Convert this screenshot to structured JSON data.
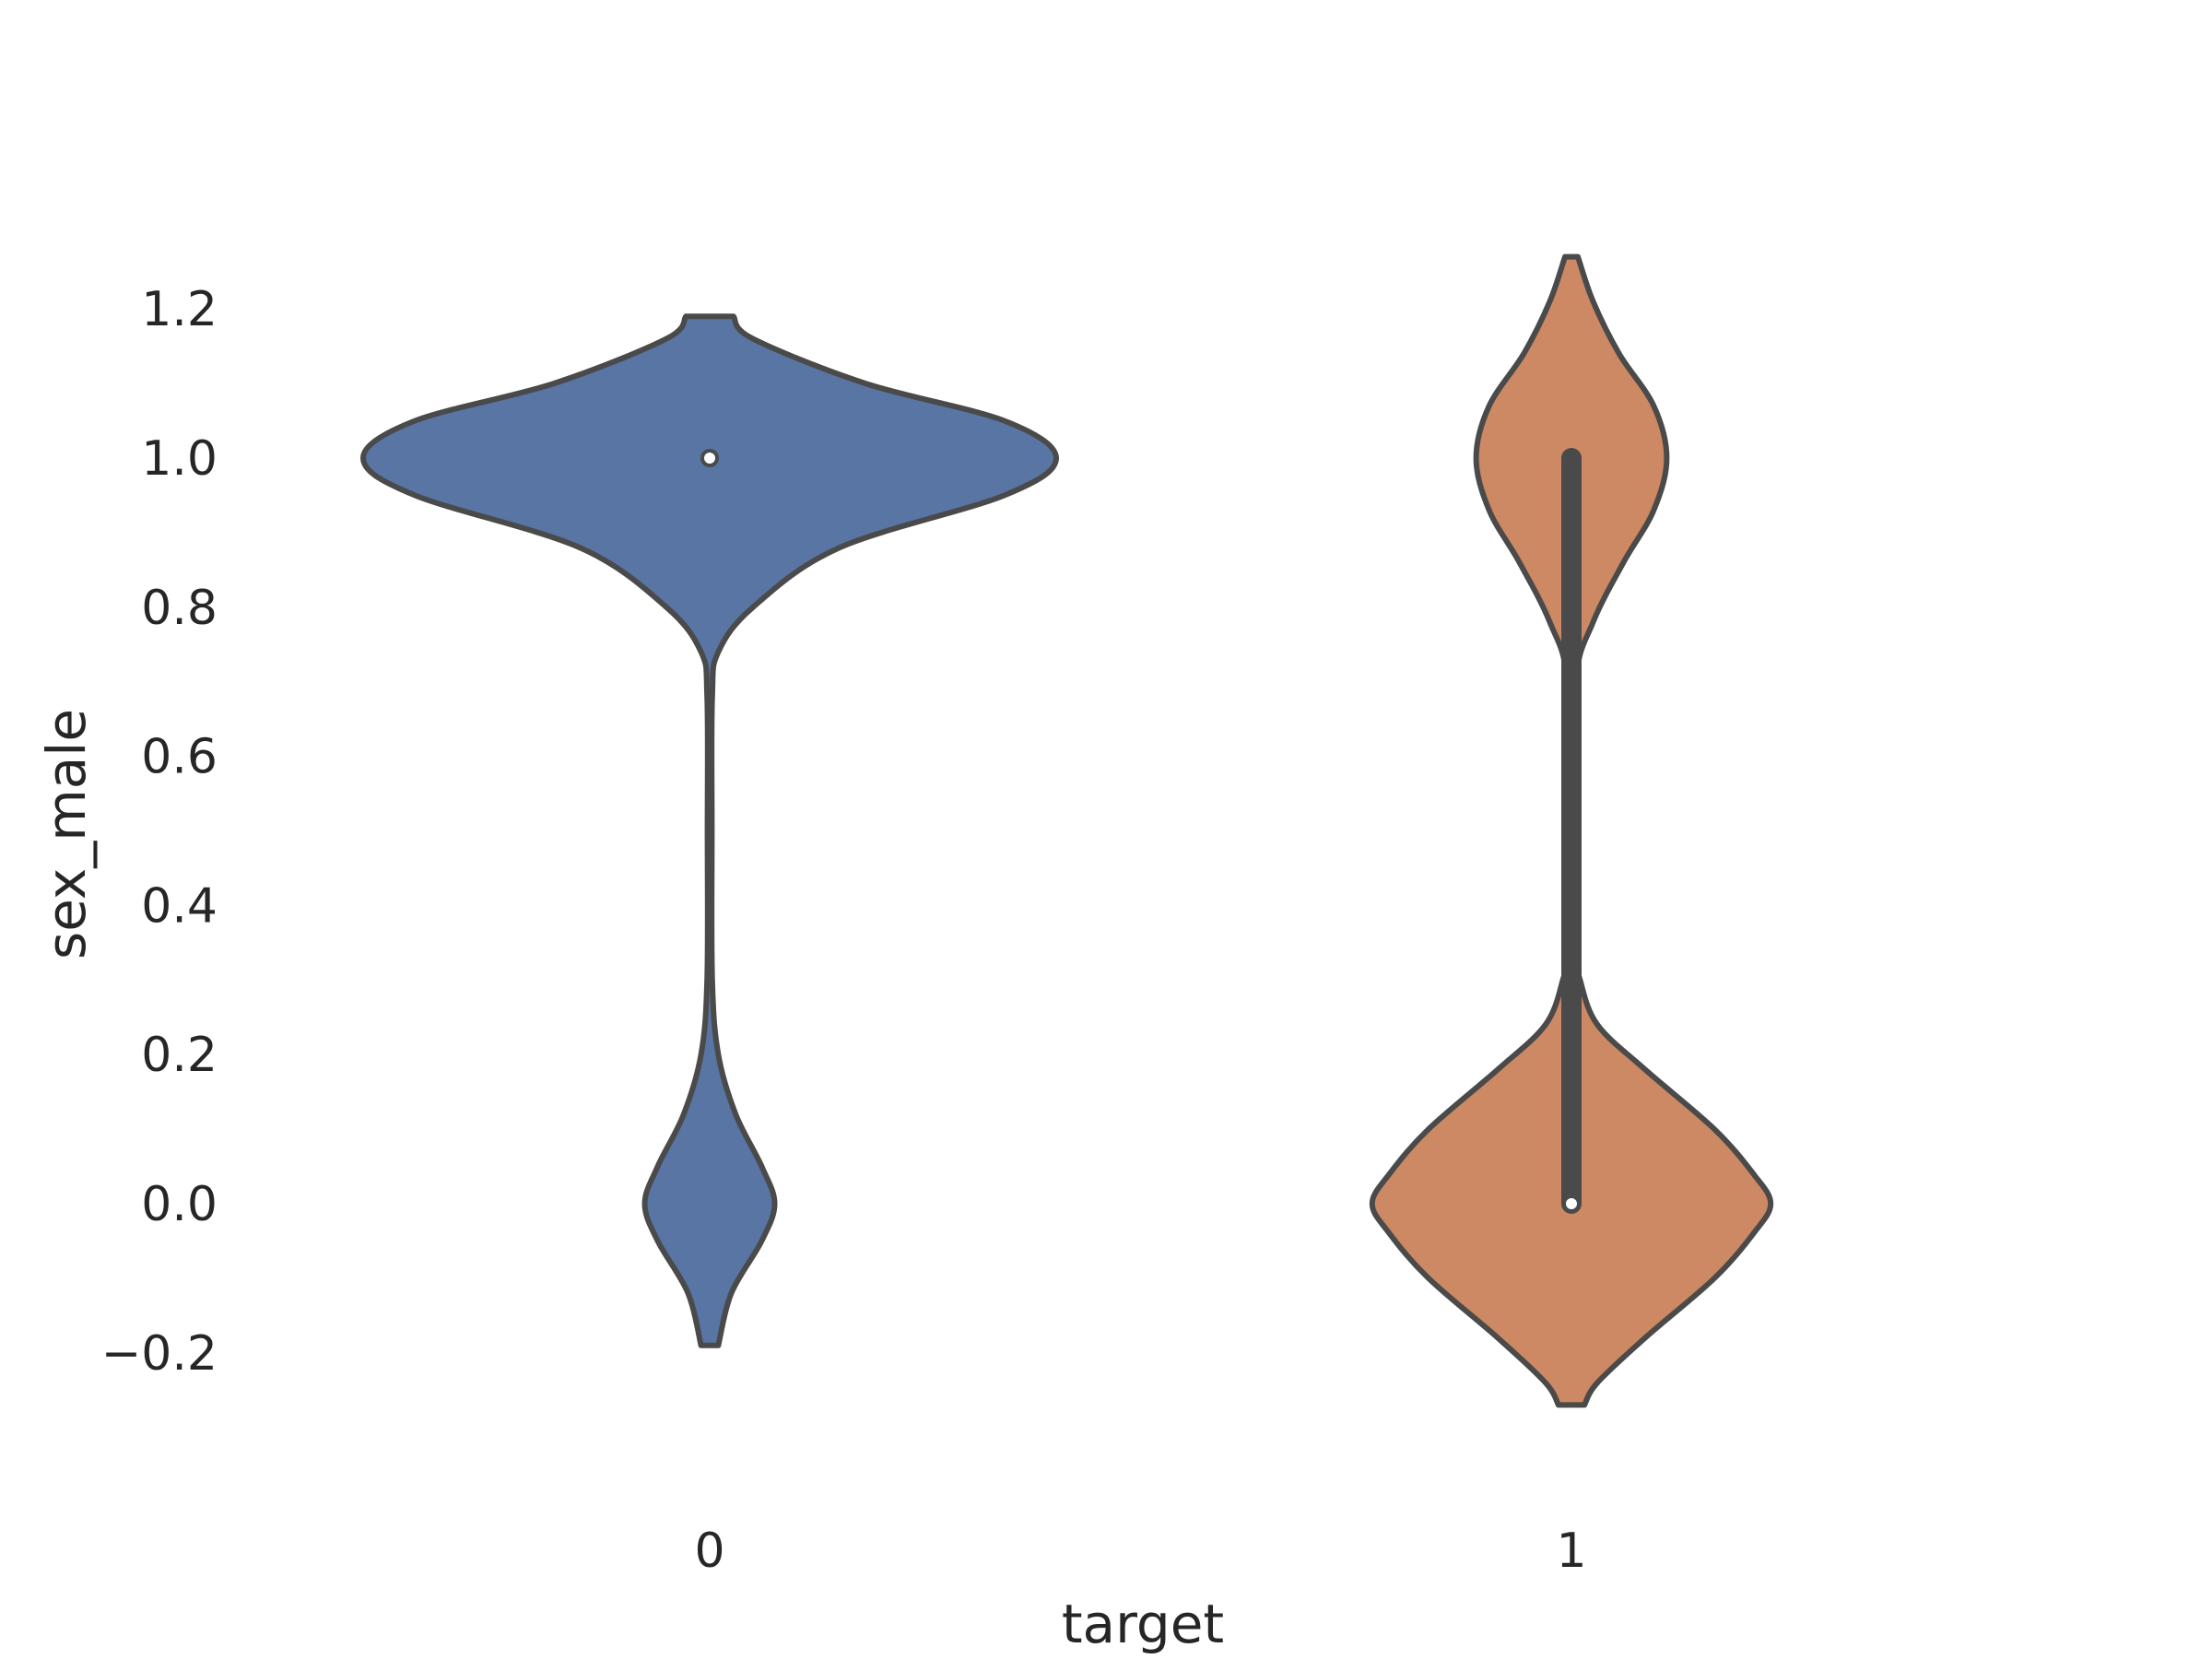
{
  "chart_data": {
    "type": "violin",
    "xlabel": "target",
    "ylabel": "sex_male",
    "categories": [
      "0",
      "1"
    ],
    "y_ticks": [
      "−0.2",
      "0.0",
      "0.2",
      "0.4",
      "0.6",
      "0.8",
      "1.0",
      "1.2"
    ],
    "y_tick_values": [
      -0.2,
      0.0,
      0.2,
      0.4,
      0.6,
      0.8,
      1.0,
      1.2
    ],
    "ylim": [
      -0.3,
      1.4
    ],
    "grid": false,
    "violins": [
      {
        "category": "0",
        "color": "#5975a4",
        "min_extent": -0.19,
        "max_extent": 1.19,
        "median": 1.0,
        "q1": 1.0,
        "q3": 1.0,
        "density_profile": [
          {
            "y": -0.19,
            "half_width": 0.02
          },
          {
            "y": -0.12,
            "half_width": 0.05
          },
          {
            "y": -0.05,
            "half_width": 0.12
          },
          {
            "y": 0.0,
            "half_width": 0.15
          },
          {
            "y": 0.05,
            "half_width": 0.12
          },
          {
            "y": 0.12,
            "half_width": 0.06
          },
          {
            "y": 0.2,
            "half_width": 0.02
          },
          {
            "y": 0.3,
            "half_width": 0.006
          },
          {
            "y": 0.5,
            "half_width": 0.005
          },
          {
            "y": 0.68,
            "half_width": 0.006
          },
          {
            "y": 0.74,
            "half_width": 0.02
          },
          {
            "y": 0.8,
            "half_width": 0.1
          },
          {
            "y": 0.88,
            "half_width": 0.3
          },
          {
            "y": 0.95,
            "half_width": 0.68
          },
          {
            "y": 1.0,
            "half_width": 0.8
          },
          {
            "y": 1.05,
            "half_width": 0.68
          },
          {
            "y": 1.1,
            "half_width": 0.36
          },
          {
            "y": 1.16,
            "half_width": 0.1
          },
          {
            "y": 1.19,
            "half_width": 0.055
          }
        ]
      },
      {
        "category": "1",
        "color": "#cc8963",
        "min_extent": -0.27,
        "max_extent": 1.27,
        "median": 0.0,
        "q1": 0.0,
        "q3": 1.0,
        "density_profile": [
          {
            "y": -0.27,
            "half_width": 0.03
          },
          {
            "y": -0.24,
            "half_width": 0.06
          },
          {
            "y": -0.18,
            "half_width": 0.17
          },
          {
            "y": -0.1,
            "half_width": 0.33
          },
          {
            "y": -0.04,
            "half_width": 0.42
          },
          {
            "y": 0.0,
            "half_width": 0.46
          },
          {
            "y": 0.04,
            "half_width": 0.42
          },
          {
            "y": 0.1,
            "half_width": 0.33
          },
          {
            "y": 0.18,
            "half_width": 0.17
          },
          {
            "y": 0.24,
            "half_width": 0.06
          },
          {
            "y": 0.3,
            "half_width": 0.02
          },
          {
            "y": 0.34,
            "half_width": 0.01
          },
          {
            "y": 0.5,
            "half_width": 0.008
          },
          {
            "y": 0.7,
            "half_width": 0.01
          },
          {
            "y": 0.78,
            "half_width": 0.05
          },
          {
            "y": 0.86,
            "half_width": 0.12
          },
          {
            "y": 0.93,
            "half_width": 0.19
          },
          {
            "y": 1.0,
            "half_width": 0.22
          },
          {
            "y": 1.07,
            "half_width": 0.19
          },
          {
            "y": 1.14,
            "half_width": 0.11
          },
          {
            "y": 1.21,
            "half_width": 0.05
          },
          {
            "y": 1.27,
            "half_width": 0.015
          }
        ]
      }
    ]
  }
}
